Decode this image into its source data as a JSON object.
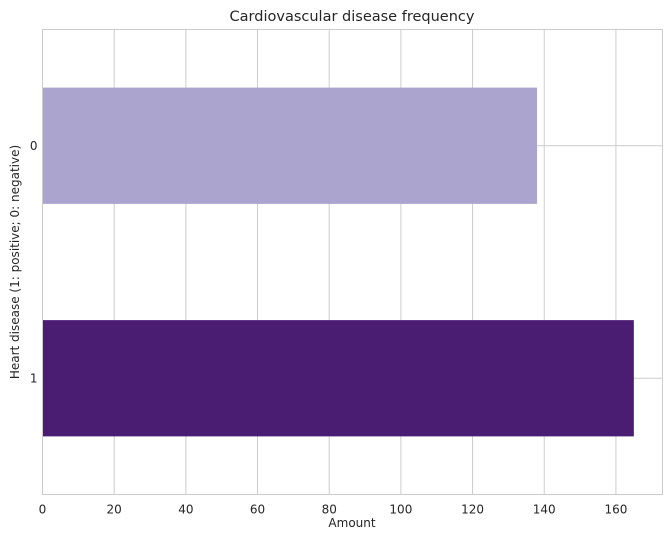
{
  "chart_data": {
    "type": "bar",
    "orientation": "horizontal",
    "title": "Cardiovascular disease frequency",
    "xlabel": "Amount",
    "ylabel": "Heart disease (1: positive; 0: negative)",
    "categories": [
      "0",
      "1"
    ],
    "values": [
      138,
      165
    ],
    "colors": [
      "#aba4cf",
      "#4a1c72"
    ],
    "xlim": [
      0,
      173
    ],
    "xticks": [
      0,
      20,
      40,
      60,
      80,
      100,
      120,
      140,
      160
    ],
    "grid": true,
    "legend": "none"
  }
}
